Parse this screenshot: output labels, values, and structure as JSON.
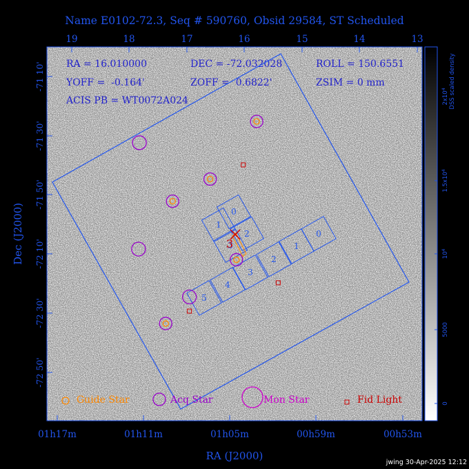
{
  "title": "Name E0102-72.3, Seq # 590760, Obsid 29584, ST Scheduled",
  "info": {
    "ra": "RA = 16.010000",
    "dec": "DEC = -72.032028",
    "roll": "ROLL = 150.6551",
    "yoff": "YOFF =  -0.164'",
    "zoff": "ZOFF =  0.6822'",
    "zsim": "ZSIM = 0 mm",
    "acis": "ACIS PB = WT0072A024"
  },
  "axes": {
    "xlabel": "RA (J2000)",
    "ylabel": "Dec (J2000)",
    "bottom_ticks": [
      "01h17m",
      "01h11m",
      "01h05m",
      "00h59m",
      "00h53m"
    ],
    "top_ticks": [
      "19",
      "18",
      "17",
      "16",
      "15",
      "14",
      "13"
    ],
    "left_ticks": [
      "-71 10'",
      "-71 30'",
      "-71 50'",
      "-72 10'",
      "-72 30'",
      "-72 50'"
    ]
  },
  "colorbar": {
    "label_line1": "DSS scaled density",
    "label_line2": "2x10^4",
    "ticks": [
      "2x10^4",
      "1.5x10^4",
      "10^4",
      "5000",
      "0"
    ]
  },
  "legend": {
    "guide": "Guide Star",
    "acq": "Acq Star",
    "mon": "Mon Star",
    "fid": "Fid Light"
  },
  "chips": [
    "0",
    "1",
    "2",
    "3",
    "0",
    "1",
    "2",
    "3",
    "4",
    "5"
  ],
  "target_label": "3",
  "footer": "jwing 30-Apr-2025 12:12",
  "colors": {
    "frame": "#2255ee",
    "guide": "#ff8800",
    "acq": "#9900cc",
    "mon": "#cc00cc",
    "fid": "#cc0000",
    "target": "#cc0000"
  },
  "chart_data": {
    "type": "scatter",
    "title": "Name E0102-72.3, Seq # 590760, Obsid 29584, ST Scheduled",
    "xlabel": "RA (J2000)",
    "ylabel": "Dec (J2000)",
    "series": [
      {
        "name": "Guide Star",
        "points": [
          [
            1.052,
            -71.42
          ],
          [
            1.1495,
            -71.87
          ],
          [
            1.106,
            -71.745
          ],
          [
            1.0755,
            -72.2
          ],
          [
            1.1575,
            -72.56
          ]
        ]
      },
      {
        "name": "Acq Star",
        "points": [
          [
            1.188,
            -71.54
          ],
          [
            1.189,
            -72.14
          ],
          [
            1.13,
            -72.41
          ]
        ]
      },
      {
        "name": "Fid Light",
        "points": [
          [
            1.0675,
            -71.665
          ],
          [
            1.027,
            -72.33
          ],
          [
            1.13,
            -72.49
          ]
        ]
      }
    ]
  }
}
